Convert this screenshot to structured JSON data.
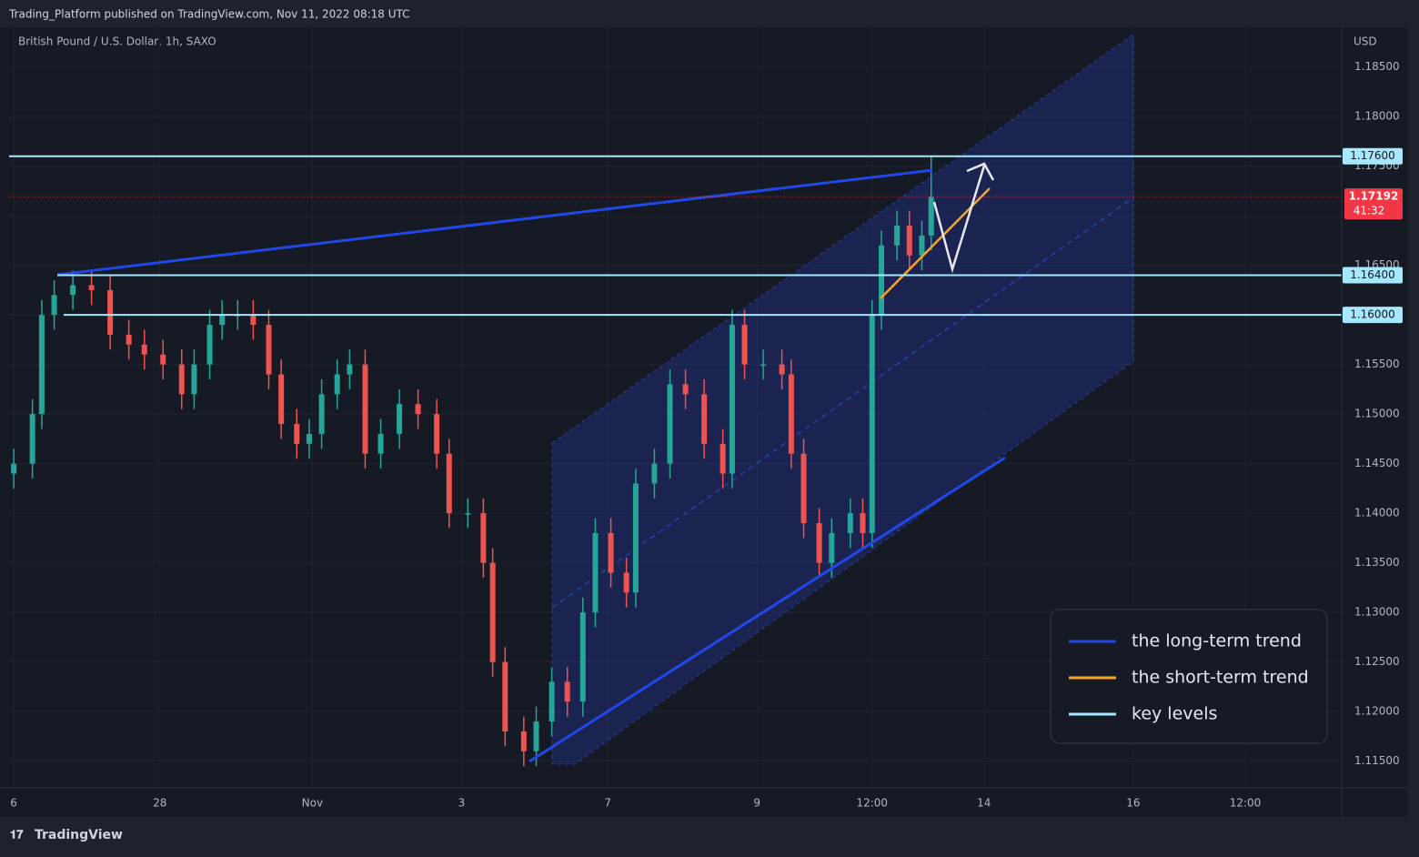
{
  "header": {
    "published": "Trading_Platform published on TradingView.com, Nov 11, 2022 08:18 UTC"
  },
  "chart_data": {
    "type": "candlestick",
    "title": "British Pound / U.S. Dollar, 1h, SAXO",
    "currency": "USD",
    "x": [
      0,
      6,
      9,
      13,
      19,
      25,
      31,
      37,
      42,
      48,
      54,
      58,
      63,
      67,
      72,
      77,
      82,
      86,
      91,
      95,
      99,
      104,
      108,
      113,
      118,
      124,
      130,
      136,
      140,
      146,
      151,
      154,
      158,
      164,
      168,
      173,
      178,
      183,
      187,
      192,
      197,
      200,
      206,
      211,
      216,
      222,
      228,
      231,
      235,
      241,
      247,
      250,
      254,
      259,
      263,
      269,
      273,
      276,
      279,
      284,
      288,
      292,
      295
    ],
    "open": [
      1.144,
      1.145,
      1.15,
      1.16,
      1.162,
      1.163,
      1.1625,
      1.158,
      1.157,
      1.156,
      1.155,
      1.152,
      1.155,
      1.159,
      1.16,
      1.16,
      1.159,
      1.154,
      1.149,
      1.147,
      1.148,
      1.152,
      1.154,
      1.155,
      1.146,
      1.148,
      1.151,
      1.15,
      1.146,
      1.14,
      1.14,
      1.135,
      1.125,
      1.118,
      1.116,
      1.119,
      1.123,
      1.121,
      1.13,
      1.138,
      1.134,
      1.132,
      1.143,
      1.145,
      1.153,
      1.152,
      1.147,
      1.144,
      1.159,
      1.155,
      1.155,
      1.154,
      1.146,
      1.139,
      1.135,
      1.138,
      1.14,
      1.138,
      1.16,
      1.167,
      1.169,
      1.166,
      1.168
    ],
    "high": [
      1.1465,
      1.1515,
      1.1615,
      1.1635,
      1.1645,
      1.1645,
      1.164,
      1.1595,
      1.1585,
      1.1575,
      1.1565,
      1.1565,
      1.1605,
      1.1615,
      1.1615,
      1.1615,
      1.1605,
      1.1555,
      1.1505,
      1.1495,
      1.1535,
      1.1555,
      1.1565,
      1.1565,
      1.1495,
      1.1525,
      1.1525,
      1.1515,
      1.1475,
      1.1415,
      1.1415,
      1.1365,
      1.1265,
      1.1195,
      1.1205,
      1.1245,
      1.1245,
      1.1315,
      1.1395,
      1.1395,
      1.1355,
      1.1445,
      1.1465,
      1.1545,
      1.1545,
      1.1535,
      1.1485,
      1.1605,
      1.1605,
      1.1565,
      1.1565,
      1.1555,
      1.1475,
      1.1405,
      1.1395,
      1.1415,
      1.1415,
      1.1615,
      1.1685,
      1.1705,
      1.1705,
      1.1695,
      1.176
    ],
    "low": [
      1.1425,
      1.1435,
      1.1485,
      1.1585,
      1.1605,
      1.161,
      1.1565,
      1.1555,
      1.1545,
      1.1535,
      1.1505,
      1.1505,
      1.1535,
      1.1575,
      1.1585,
      1.1575,
      1.1525,
      1.1475,
      1.1455,
      1.1455,
      1.1465,
      1.1505,
      1.1525,
      1.1445,
      1.1445,
      1.1465,
      1.1485,
      1.1445,
      1.1385,
      1.1385,
      1.1335,
      1.1235,
      1.1165,
      1.1145,
      1.1145,
      1.1175,
      1.1195,
      1.1195,
      1.1285,
      1.1325,
      1.1305,
      1.1305,
      1.1415,
      1.1435,
      1.1505,
      1.1455,
      1.1425,
      1.1425,
      1.1535,
      1.1535,
      1.1525,
      1.1445,
      1.1375,
      1.1335,
      1.1335,
      1.1365,
      1.1365,
      1.1365,
      1.1585,
      1.1655,
      1.1645,
      1.1645,
      1.1665
    ],
    "close": [
      1.145,
      1.15,
      1.16,
      1.162,
      1.163,
      1.1625,
      1.158,
      1.157,
      1.156,
      1.155,
      1.152,
      1.155,
      1.159,
      1.16,
      1.16,
      1.159,
      1.154,
      1.149,
      1.147,
      1.148,
      1.152,
      1.154,
      1.155,
      1.146,
      1.148,
      1.151,
      1.15,
      1.146,
      1.14,
      1.14,
      1.135,
      1.125,
      1.118,
      1.116,
      1.119,
      1.123,
      1.121,
      1.13,
      1.138,
      1.134,
      1.132,
      1.143,
      1.145,
      1.153,
      1.152,
      1.147,
      1.144,
      1.159,
      1.155,
      1.155,
      1.154,
      1.146,
      1.139,
      1.135,
      1.138,
      1.14,
      1.138,
      1.16,
      1.167,
      1.169,
      1.166,
      1.168,
      1.1719
    ],
    "up_color": "#26a69a",
    "down_color": "#ef5350",
    "xlim": [
      -1.5,
      427
    ],
    "ylim": [
      1.1124,
      1.189
    ],
    "xticks": [
      {
        "value": 0,
        "label": "6"
      },
      {
        "value": 47,
        "label": "28"
      },
      {
        "value": 96,
        "label": "Nov"
      },
      {
        "value": 144,
        "label": "3"
      },
      {
        "value": 191,
        "label": "7"
      },
      {
        "value": 239,
        "label": "9"
      },
      {
        "value": 276,
        "label": "12:00"
      },
      {
        "value": 312,
        "label": "14"
      },
      {
        "value": 360,
        "label": "16"
      },
      {
        "value": 396,
        "label": "12:00"
      }
    ],
    "yticks": [
      {
        "value": 1.185,
        "label": "1.18500"
      },
      {
        "value": 1.18,
        "label": "1.18000"
      },
      {
        "value": 1.175,
        "label": "1.17500"
      },
      {
        "value": 1.17,
        "label": "1.17000"
      },
      {
        "value": 1.165,
        "label": "1.16500"
      },
      {
        "value": 1.16,
        "label": "1.16000"
      },
      {
        "value": 1.155,
        "label": "1.15500"
      },
      {
        "value": 1.15,
        "label": "1.15000"
      },
      {
        "value": 1.145,
        "label": "1.14500"
      },
      {
        "value": 1.14,
        "label": "1.14000"
      },
      {
        "value": 1.135,
        "label": "1.13500"
      },
      {
        "value": 1.13,
        "label": "1.13000"
      },
      {
        "value": 1.125,
        "label": "1.12500"
      },
      {
        "value": 1.12,
        "label": "1.12000"
      },
      {
        "value": 1.115,
        "label": "1.11500"
      }
    ],
    "grid": true,
    "key_levels": [
      {
        "value": 1.176,
        "label": "1.17600"
      },
      {
        "value": 1.164,
        "label": "1.16400"
      },
      {
        "value": 1.16,
        "label": "1.16000"
      }
    ],
    "key_level_color": "#a6e8ff",
    "last_price": {
      "value": 1.17192,
      "label": "1.17192"
    },
    "countdown": "41:32",
    "legend": [
      {
        "name": "the long-term trend",
        "color": "#2147e6"
      },
      {
        "name": "the short-term trend",
        "color": "#f5a623"
      },
      {
        "name": "key levels",
        "color": "#a6e8ff"
      }
    ]
  },
  "footer": {
    "brand": "TradingView"
  }
}
